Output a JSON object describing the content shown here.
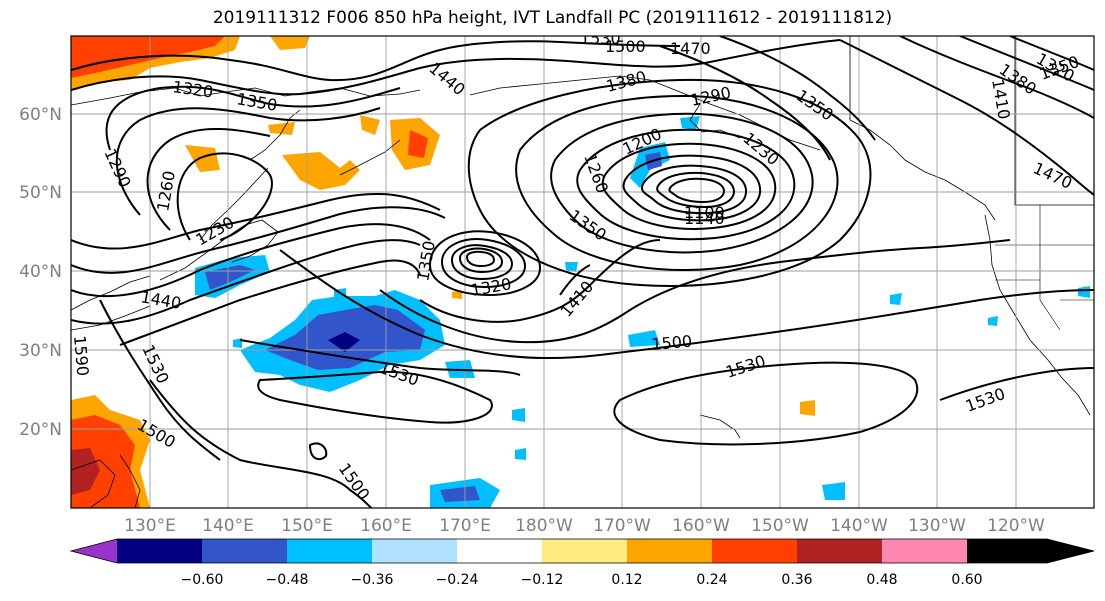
{
  "title": "2019111312 F006 850 hPa height, IVT Landfall PC (2019111612 - 2019111812)",
  "map": {
    "lat_labels": [
      "60°N",
      "50°N",
      "40°N",
      "30°N",
      "20°N"
    ],
    "lon_labels": [
      "130°E",
      "140°E",
      "150°E",
      "160°E",
      "170°E",
      "180°W",
      "170°W",
      "160°W",
      "150°W",
      "140°W",
      "130°W",
      "120°W"
    ],
    "label_color": "#7f7f7f",
    "gridlines": true,
    "contour_color": "#000000",
    "contour_labels": {
      "c1530a": "1530",
      "c1500a": "1500",
      "c1470a": "1470",
      "c1440a": "1440",
      "c1320a": "1320",
      "c1350a": "1350",
      "c1380a": "1380",
      "c1290a": "1290",
      "c1350b": "1350",
      "c1320b": "1320",
      "c1320c": "1320",
      "c1350c": "1350",
      "c1380b": "1380",
      "c1410a": "1410",
      "c1470b": "1470",
      "c1290b": "1290",
      "c1260a": "1260",
      "c1230a": "1230",
      "c1440b": "1440",
      "c1530b": "1530",
      "c1590a": "1590",
      "c1500b": "1500",
      "c1500c": "1500",
      "c1200a": "1200",
      "c1260b": "1260",
      "c1230b": "1230",
      "c1350d": "1350",
      "c1100a": "1100",
      "c1140a": "1140",
      "c1350e": "1350",
      "c1320d": "1320",
      "c1410b": "1410",
      "c1500d": "1500",
      "c1530c": "1530",
      "c1530d": "1530",
      "c1530e": "1530"
    }
  },
  "colorbar": {
    "colors": [
      "#9933cc",
      "#000080",
      "#3355cc",
      "#00bfff",
      "#b0e0ff",
      "#ffffff",
      "#ffeb80",
      "#ffa500",
      "#ff4000",
      "#b22222",
      "#ff88b0"
    ],
    "tick_labels": [
      "−0.60",
      "−0.48",
      "−0.36",
      "−0.24",
      "−0.12",
      "0.12",
      "0.24",
      "0.36",
      "0.48",
      "0.60"
    ],
    "extend": "both"
  }
}
